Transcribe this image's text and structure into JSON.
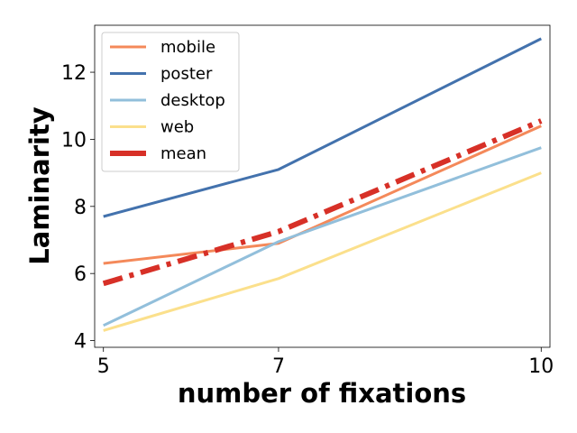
{
  "chart_data": {
    "type": "line",
    "x": [
      5,
      7,
      10
    ],
    "xticks": [
      5,
      7,
      10
    ],
    "yticks": [
      4,
      6,
      8,
      10,
      12
    ],
    "xlim": [
      4.9,
      10.1
    ],
    "ylim": [
      3.8,
      13.4
    ],
    "xlabel": "number of fixations",
    "ylabel": "Laminarity",
    "grid": false,
    "legend_position": "top-left",
    "series": [
      {
        "name": "mobile",
        "values": [
          6.3,
          6.9,
          10.4
        ],
        "color": "#f4895a",
        "style": "solid"
      },
      {
        "name": "poster",
        "values": [
          7.7,
          9.1,
          13.0
        ],
        "color": "#4372ad",
        "style": "solid"
      },
      {
        "name": "desktop",
        "values": [
          4.45,
          6.95,
          9.75
        ],
        "color": "#92bfdb",
        "style": "solid"
      },
      {
        "name": "web",
        "values": [
          4.3,
          5.85,
          9.0
        ],
        "color": "#fbe08c",
        "style": "solid"
      },
      {
        "name": "mean",
        "values": [
          5.7,
          7.25,
          10.55
        ],
        "color": "#d73027",
        "style": "dashdot"
      }
    ]
  }
}
